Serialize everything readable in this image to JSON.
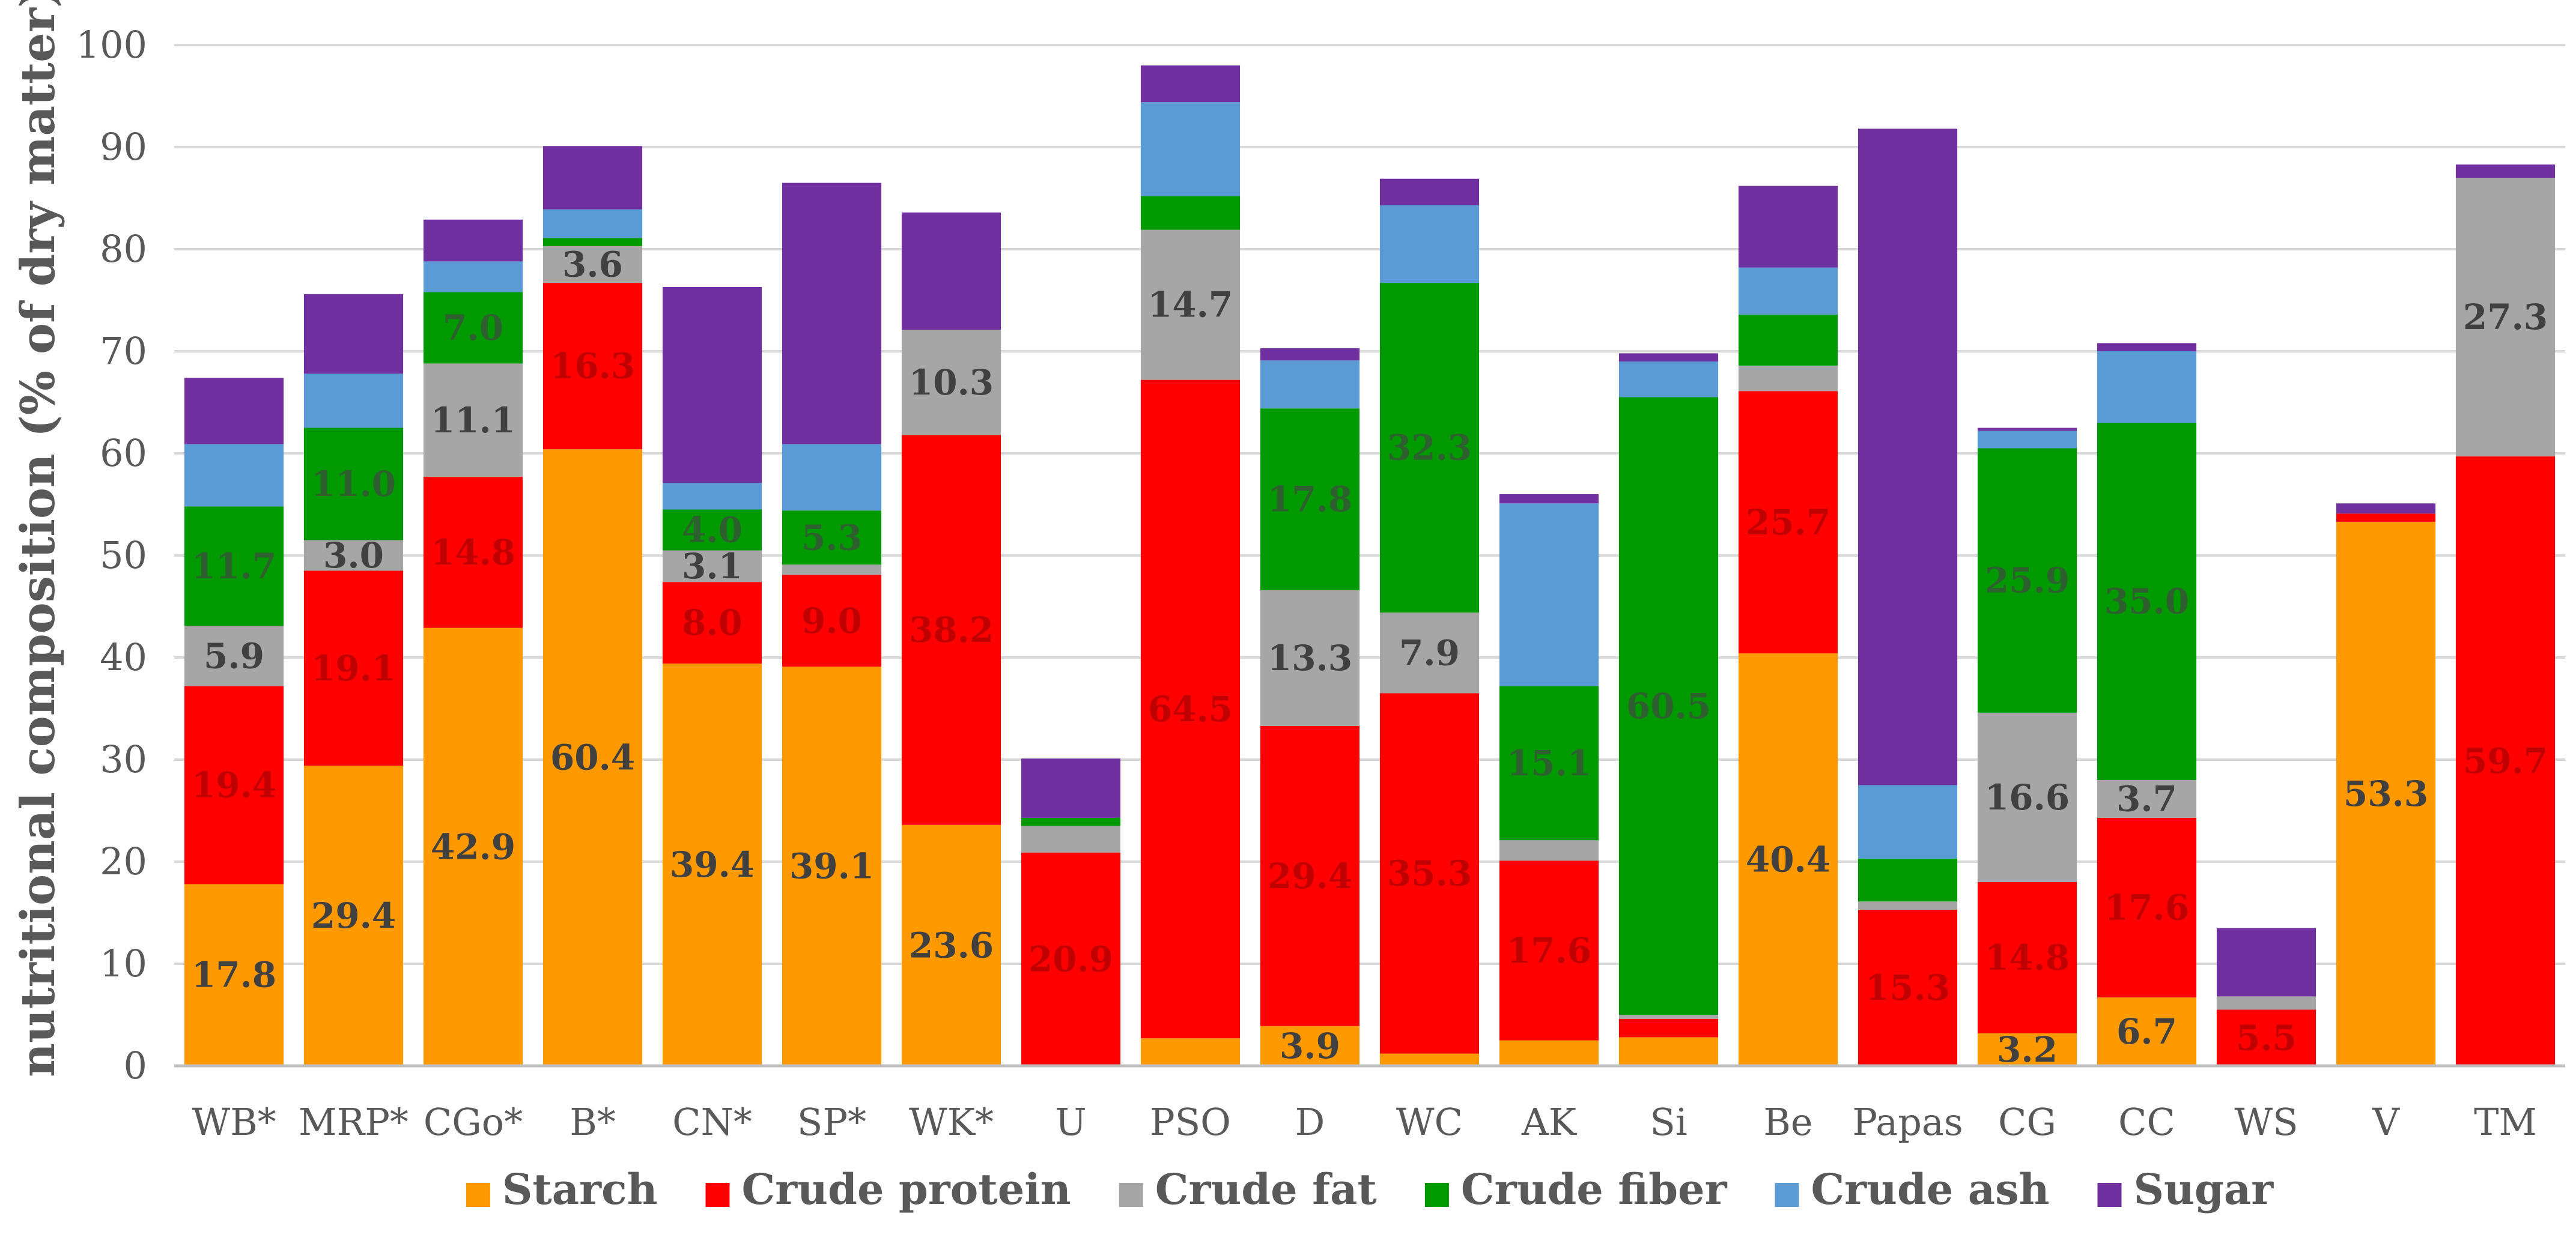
{
  "chart_data": {
    "type": "bar",
    "stacked": true,
    "ylabel": "nutritional composition (% of dry matter)",
    "ylim": [
      0,
      100
    ],
    "yticks": [
      0,
      10,
      20,
      30,
      40,
      50,
      60,
      70,
      80,
      90,
      100
    ],
    "grid": true,
    "legend_position": "bottom",
    "categories": [
      "WB*",
      "MRP*",
      "CGo*",
      "B*",
      "CN*",
      "SP*",
      "WK*",
      "U",
      "PSO",
      "D",
      "WC",
      "AK",
      "Si",
      "Be",
      "Papas",
      "CG",
      "CC",
      "WS",
      "V",
      "TM"
    ],
    "series": [
      {
        "name": "Starch",
        "color": "#FF9900",
        "values": [
          17.8,
          29.4,
          42.9,
          60.4,
          39.4,
          39.1,
          23.6,
          0,
          2.7,
          3.9,
          1.2,
          2.5,
          2.8,
          40.4,
          0,
          3.2,
          6.7,
          0,
          53.3,
          0
        ]
      },
      {
        "name": "Crude protein",
        "color": "#FF0000",
        "values": [
          19.4,
          19.1,
          14.8,
          16.3,
          8.0,
          9.0,
          38.2,
          20.9,
          64.5,
          29.4,
          35.3,
          17.6,
          1.8,
          25.7,
          15.3,
          14.8,
          17.6,
          5.5,
          0.8,
          59.7
        ]
      },
      {
        "name": "Crude fat",
        "color": "#A6A6A6",
        "values": [
          5.9,
          3.0,
          11.1,
          3.6,
          3.1,
          1.0,
          10.3,
          2.6,
          14.7,
          13.3,
          7.9,
          2.0,
          0.4,
          2.5,
          0.8,
          16.6,
          3.7,
          1.3,
          0,
          27.3
        ]
      },
      {
        "name": "Crude fiber",
        "color": "#009900",
        "values": [
          11.7,
          11.0,
          7.0,
          0.8,
          4.0,
          5.3,
          0,
          0.8,
          3.3,
          17.8,
          32.3,
          15.1,
          60.5,
          5.0,
          4.2,
          25.9,
          35.0,
          0,
          0,
          0
        ]
      },
      {
        "name": "Crude ash",
        "color": "#5B9BD5",
        "values": [
          6.1,
          5.3,
          3.0,
          2.8,
          2.6,
          6.5,
          0,
          0,
          9.2,
          4.7,
          7.6,
          17.9,
          3.5,
          4.6,
          7.2,
          1.7,
          7.0,
          0,
          0,
          0
        ]
      },
      {
        "name": "Sugar",
        "color": "#7030A0",
        "values": [
          6.5,
          7.8,
          4.1,
          6.2,
          19.2,
          25.6,
          11.5,
          5.8,
          3.6,
          1.2,
          2.6,
          0.9,
          0.8,
          8.0,
          64.3,
          0.3,
          0.8,
          6.7,
          1.0,
          1.3
        ]
      }
    ],
    "data_labels": [
      {
        "category": "WB*",
        "series": "Starch",
        "text": "17.8"
      },
      {
        "category": "WB*",
        "series": "Crude protein",
        "text": "19.4"
      },
      {
        "category": "WB*",
        "series": "Crude fat",
        "text": "5.9"
      },
      {
        "category": "WB*",
        "series": "Crude fiber",
        "text": "11.7"
      },
      {
        "category": "MRP*",
        "series": "Starch",
        "text": "29.4"
      },
      {
        "category": "MRP*",
        "series": "Crude protein",
        "text": "19.1"
      },
      {
        "category": "MRP*",
        "series": "Crude fat",
        "text": "3.0"
      },
      {
        "category": "MRP*",
        "series": "Crude fiber",
        "text": "11.0"
      },
      {
        "category": "CGo*",
        "series": "Starch",
        "text": "42.9"
      },
      {
        "category": "CGo*",
        "series": "Crude protein",
        "text": "14.8"
      },
      {
        "category": "CGo*",
        "series": "Crude fat",
        "text": "11.1"
      },
      {
        "category": "CGo*",
        "series": "Crude fiber",
        "text": "7.0"
      },
      {
        "category": "B*",
        "series": "Starch",
        "text": "60.4"
      },
      {
        "category": "B*",
        "series": "Crude protein",
        "text": "16.3"
      },
      {
        "category": "B*",
        "series": "Crude fat",
        "text": "3.6"
      },
      {
        "category": "CN*",
        "series": "Starch",
        "text": "39.4"
      },
      {
        "category": "CN*",
        "series": "Crude protein",
        "text": "8.0"
      },
      {
        "category": "CN*",
        "series": "Crude fat",
        "text": "3.1"
      },
      {
        "category": "CN*",
        "series": "Crude fiber",
        "text": "4.0"
      },
      {
        "category": "SP*",
        "series": "Starch",
        "text": "39.1"
      },
      {
        "category": "SP*",
        "series": "Crude protein",
        "text": "9.0"
      },
      {
        "category": "SP*",
        "series": "Crude fiber",
        "text": "5.3"
      },
      {
        "category": "WK*",
        "series": "Starch",
        "text": "23.6"
      },
      {
        "category": "WK*",
        "series": "Crude protein",
        "text": "38.2"
      },
      {
        "category": "WK*",
        "series": "Crude fat",
        "text": "10.3"
      },
      {
        "category": "U",
        "series": "Crude protein",
        "text": "20.9"
      },
      {
        "category": "PSO",
        "series": "Crude protein",
        "text": "64.5"
      },
      {
        "category": "PSO",
        "series": "Crude fat",
        "text": "14.7"
      },
      {
        "category": "D",
        "series": "Starch",
        "text": "3.9"
      },
      {
        "category": "D",
        "series": "Crude protein",
        "text": "29.4"
      },
      {
        "category": "D",
        "series": "Crude fat",
        "text": "13.3"
      },
      {
        "category": "D",
        "series": "Crude fiber",
        "text": "17.8"
      },
      {
        "category": "WC",
        "series": "Crude protein",
        "text": "35.3"
      },
      {
        "category": "WC",
        "series": "Crude fat",
        "text": "7.9"
      },
      {
        "category": "WC",
        "series": "Crude fiber",
        "text": "32.3"
      },
      {
        "category": "AK",
        "series": "Crude protein",
        "text": "17.6"
      },
      {
        "category": "AK",
        "series": "Crude fiber",
        "text": "15.1"
      },
      {
        "category": "Si",
        "series": "Crude fiber",
        "text": "60.5"
      },
      {
        "category": "Be",
        "series": "Starch",
        "text": "40.4"
      },
      {
        "category": "Be",
        "series": "Crude protein",
        "text": "25.7"
      },
      {
        "category": "Papas",
        "series": "Crude protein",
        "text": "15.3"
      },
      {
        "category": "CG",
        "series": "Starch",
        "text": "3.2"
      },
      {
        "category": "CG",
        "series": "Crude protein",
        "text": "14.8"
      },
      {
        "category": "CG",
        "series": "Crude fat",
        "text": "16.6"
      },
      {
        "category": "CG",
        "series": "Crude fiber",
        "text": "25.9"
      },
      {
        "category": "CC",
        "series": "Starch",
        "text": "6.7"
      },
      {
        "category": "CC",
        "series": "Crude protein",
        "text": "17.6"
      },
      {
        "category": "CC",
        "series": "Crude fat",
        "text": "3.7"
      },
      {
        "category": "CC",
        "series": "Crude fiber",
        "text": "35.0"
      },
      {
        "category": "WS",
        "series": "Crude protein",
        "text": "5.5"
      },
      {
        "category": "V",
        "series": "Starch",
        "text": "53.3"
      },
      {
        "category": "TM",
        "series": "Crude protein",
        "text": "59.7"
      },
      {
        "category": "TM",
        "series": "Crude fat",
        "text": "27.3"
      }
    ]
  }
}
